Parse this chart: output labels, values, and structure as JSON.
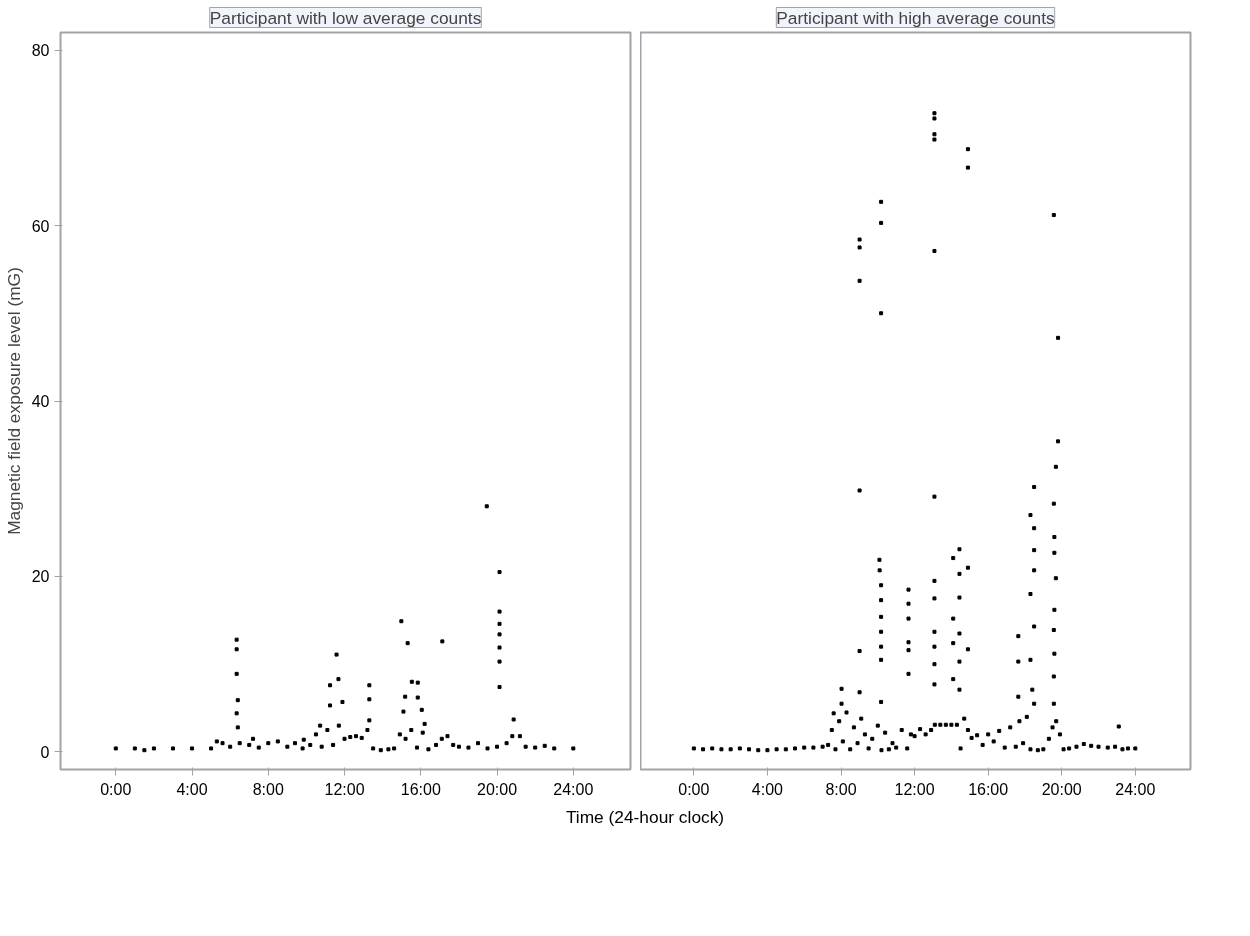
{
  "chart_data": [
    {
      "type": "scatter",
      "title": "Participant with low average counts",
      "ylabel": "Magnetic field exposure level (mG)",
      "xlabel": "Time (24-hour clock)",
      "marker": "square",
      "grid": false,
      "xlim": [
        -2.9,
        27
      ],
      "ylim": [
        -2,
        82
      ],
      "xticks": [
        {
          "value": 0,
          "label": "0:00"
        },
        {
          "value": 4,
          "label": "4:00"
        },
        {
          "value": 8,
          "label": "8:00"
        },
        {
          "value": 12,
          "label": "12:00"
        },
        {
          "value": 16,
          "label": "16:00"
        },
        {
          "value": 20,
          "label": "20:00"
        },
        {
          "value": 24,
          "label": "24:00"
        }
      ],
      "yticks": [
        0,
        20,
        40,
        60,
        80
      ],
      "series": [
        {
          "color": "#000000",
          "x": [
            0,
            1,
            1.5,
            2,
            3,
            4,
            5,
            5.3,
            5.6,
            6.0,
            6.5,
            7.0,
            7.2,
            7.5,
            8.0,
            8.5,
            9.0,
            9.4,
            9.8,
            10.2,
            10.5,
            10.8,
            11.1,
            11.4,
            11.7,
            12.0,
            12.3,
            12.6,
            12.9,
            13.2,
            13.5,
            13.9,
            14.3,
            14.6,
            14.9,
            15.2,
            15.5,
            15.8,
            16.1,
            16.4,
            16.8,
            17.1,
            17.4,
            17.7,
            18.0,
            18.5,
            19.0,
            19.5,
            20.0,
            20.5,
            20.8,
            21.2,
            21.5,
            22.0,
            22.5,
            23.0,
            24.0,
            6.34,
            6.34,
            6.34,
            6.4,
            6.34,
            6.4,
            11.58,
            11.24,
            11.68,
            11.89,
            11.24,
            10.72,
            13.3,
            13.3,
            13.3,
            14.98,
            15.31,
            17.13,
            15.53,
            15.84,
            15.18,
            15.84,
            16.05,
            15.09,
            16.2,
            20.13,
            20.13,
            20.13,
            20.13,
            20.13,
            20.13,
            20.13,
            20.87,
            9.86,
            19.46
          ],
          "values": [
            0.4,
            0.4,
            0.2,
            0.4,
            0.4,
            0.4,
            0.4,
            1.2,
            1.0,
            0.6,
            1.0,
            0.8,
            1.5,
            0.5,
            1.0,
            1.2,
            0.6,
            1.0,
            0.4,
            0.8,
            2.0,
            0.6,
            2.5,
            0.8,
            3.0,
            1.5,
            1.7,
            1.8,
            1.6,
            2.5,
            0.4,
            0.2,
            0.3,
            0.4,
            2.0,
            1.5,
            2.5,
            0.5,
            2.2,
            0.3,
            0.8,
            1.5,
            1.8,
            0.8,
            0.6,
            0.5,
            1.0,
            0.4,
            0.6,
            1.0,
            1.8,
            1.8,
            0.6,
            0.5,
            0.7,
            0.4,
            0.4,
            12.8,
            11.7,
            8.9,
            5.9,
            4.4,
            2.8,
            11.1,
            7.6,
            8.3,
            5.7,
            5.3,
            3.0,
            7.6,
            6.0,
            3.6,
            14.9,
            12.4,
            12.6,
            8.0,
            7.9,
            6.3,
            6.2,
            4.8,
            4.6,
            3.2,
            20.5,
            16.0,
            14.6,
            13.4,
            11.9,
            10.3,
            7.4,
            3.7,
            1.4,
            28.0
          ]
        }
      ]
    },
    {
      "type": "scatter",
      "title": "Participant with high average counts",
      "marker": "square",
      "grid": false,
      "tick_labels": "x",
      "xlim": [
        -2.9,
        27
      ],
      "ylim": [
        -2,
        82
      ],
      "xticks": [
        {
          "value": 0,
          "label": "0:00"
        },
        {
          "value": 4,
          "label": "4:00"
        },
        {
          "value": 8,
          "label": "8:00"
        },
        {
          "value": 12,
          "label": "12:00"
        },
        {
          "value": 16,
          "label": "16:00"
        },
        {
          "value": 20,
          "label": "20:00"
        },
        {
          "value": 24,
          "label": "24:00"
        }
      ],
      "yticks": [
        0,
        20,
        40,
        60,
        80
      ],
      "series": [
        {
          "color": "#000000",
          "x": [
            0,
            0.5,
            1,
            1.5,
            2,
            2.5,
            3,
            3.5,
            4,
            4.5,
            5,
            5.5,
            6,
            6.5,
            7,
            7.3,
            7.5,
            7.7,
            7.9,
            8.1,
            8.3,
            8.5,
            8.7,
            8.9,
            9.1,
            9.3,
            9.5,
            9.7,
            10.0,
            10.2,
            10.4,
            10.6,
            10.8,
            11.0,
            11.3,
            11.6,
            11.8,
            12.0,
            12.3,
            12.6,
            12.9,
            13.1,
            13.4,
            13.7,
            14.0,
            14.3,
            14.5,
            14.7,
            14.9,
            15.1,
            15.4,
            15.7,
            16.0,
            16.3,
            16.6,
            16.9,
            17.2,
            17.5,
            17.7,
            17.9,
            18.1,
            18.3,
            18.5,
            18.7,
            19.0,
            19.3,
            19.5,
            19.7,
            19.9,
            20.1,
            20.4,
            20.8,
            21.2,
            21.6,
            22.0,
            22.5,
            22.9,
            23.1,
            23.3,
            23.6,
            24.0,
            13.08,
            13.08,
            13.08,
            13.08,
            14.9,
            14.9,
            10.18,
            10.18,
            9.01,
            9.01,
            13.08,
            19.57,
            9.01,
            10.18,
            19.8,
            9.01,
            13.08,
            19.8,
            19.68,
            18.5,
            18.3,
            18.5,
            19.57,
            19.6,
            19.6,
            19.68,
            19.6,
            19.57,
            19.6,
            19.57,
            19.57,
            18.5,
            18.5,
            18.3,
            18.5,
            18.3,
            18.4,
            17.64,
            17.64,
            17.64,
            14.44,
            14.1,
            14.9,
            14.44,
            14.44,
            14.1,
            14.44,
            14.1,
            14.9,
            14.44,
            14.1,
            14.44,
            13.08,
            13.08,
            13.08,
            13.08,
            13.08,
            13.08,
            11.67,
            11.67,
            11.67,
            11.67,
            11.67,
            11.67,
            10.09,
            10.1,
            10.18,
            10.18,
            10.18,
            10.18,
            10.18,
            10.18,
            10.18,
            9.01,
            9.01,
            8.03,
            7.6,
            8.03
          ],
          "values": [
            0.4,
            0.3,
            0.4,
            0.3,
            0.3,
            0.4,
            0.3,
            0.2,
            0.2,
            0.3,
            0.3,
            0.4,
            0.5,
            0.5,
            0.6,
            0.8,
            2.5,
            0.3,
            3.5,
            1.2,
            4.5,
            0.3,
            2.8,
            1.0,
            3.8,
            2.0,
            0.4,
            1.5,
            3.0,
            0.2,
            2.2,
            0.3,
            1.0,
            0.5,
            2.5,
            0.4,
            2.0,
            1.8,
            2.6,
            2.0,
            2.5,
            3.1,
            3.1,
            3.1,
            3.1,
            3.1,
            0.4,
            3.8,
            2.5,
            1.6,
            1.9,
            0.8,
            2.0,
            1.2,
            2.4,
            0.5,
            2.8,
            0.6,
            3.5,
            1.0,
            4.0,
            0.3,
            5.5,
            0.2,
            0.3,
            1.5,
            2.8,
            3.5,
            2.0,
            0.3,
            0.4,
            0.6,
            0.9,
            0.7,
            0.6,
            0.5,
            0.6,
            2.9,
            0.3,
            0.4,
            0.4,
            72.8,
            72.2,
            70.4,
            69.8,
            68.7,
            66.6,
            62.7,
            60.3,
            58.4,
            57.5,
            57.1,
            61.2,
            53.7,
            50.0,
            47.2,
            29.8,
            29.1,
            35.4,
            32.5,
            30.2,
            27.0,
            25.5,
            28.3,
            24.5,
            22.7,
            19.8,
            16.2,
            13.9,
            11.2,
            8.6,
            5.5,
            23.0,
            20.7,
            18.0,
            14.3,
            10.5,
            7.1,
            13.2,
            10.3,
            6.3,
            23.1,
            22.1,
            21.0,
            20.3,
            17.6,
            15.2,
            13.5,
            12.4,
            11.7,
            10.3,
            8.3,
            7.1,
            19.5,
            17.5,
            13.7,
            12.0,
            10.0,
            7.7,
            18.5,
            16.9,
            15.2,
            12.5,
            11.6,
            8.9,
            21.9,
            20.7,
            19.0,
            17.3,
            15.4,
            13.7,
            12.0,
            10.5,
            5.7,
            11.5,
            6.8,
            7.2,
            4.4,
            5.5
          ]
        }
      ]
    }
  ]
}
